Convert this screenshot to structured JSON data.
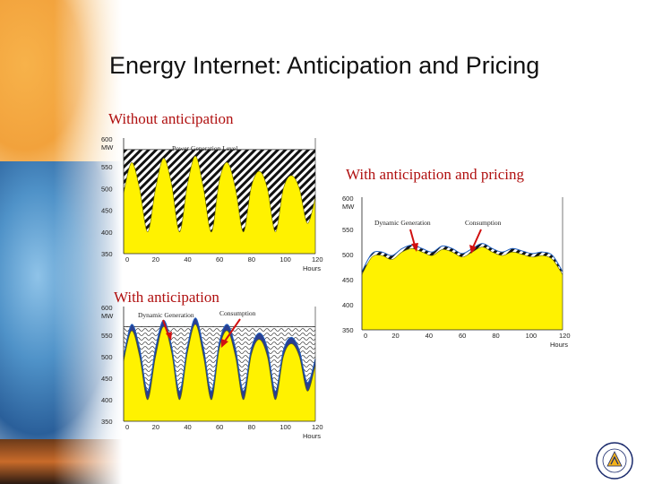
{
  "slide": {
    "title": "Energy Internet: Anticipation and Pricing"
  },
  "colors": {
    "accent_red": "#b01010",
    "fill_yellow": "#fff200",
    "line_blue": "#1f5fbf"
  },
  "chart_data": [
    {
      "type": "area",
      "title": "Without anticipation",
      "series_label": "Power Generation Level",
      "ylabel_unit": "MW",
      "xlabel_unit": "Hours",
      "ylim": [
        350,
        600
      ],
      "xlim": [
        0,
        120
      ],
      "y_ticks": [
        350,
        400,
        450,
        500,
        550,
        600
      ],
      "x_ticks": [
        0,
        20,
        40,
        60,
        80,
        100,
        120
      ],
      "generation_level": 590,
      "x": [
        0,
        5,
        10,
        15,
        20,
        25,
        30,
        35,
        40,
        45,
        50,
        55,
        60,
        65,
        70,
        75,
        80,
        85,
        90,
        95,
        100,
        105,
        110,
        115,
        120
      ],
      "consumption": [
        490,
        560,
        500,
        400,
        500,
        570,
        510,
        400,
        510,
        575,
        500,
        400,
        520,
        560,
        500,
        400,
        505,
        540,
        500,
        400,
        500,
        530,
        500,
        420,
        480
      ]
    },
    {
      "type": "area",
      "title": "With anticipation",
      "series": [
        {
          "name": "Dynamic Generation"
        },
        {
          "name": "Consumption"
        }
      ],
      "ylabel_unit": "MW",
      "xlabel_unit": "Hours",
      "ylim": [
        350,
        600
      ],
      "xlim": [
        0,
        120
      ],
      "y_ticks": [
        350,
        400,
        450,
        500,
        550,
        600
      ],
      "x_ticks": [
        0,
        20,
        40,
        60,
        80,
        100,
        120
      ],
      "generation_level": 570,
      "x": [
        0,
        5,
        10,
        15,
        20,
        25,
        30,
        35,
        40,
        45,
        50,
        55,
        60,
        65,
        70,
        75,
        80,
        85,
        90,
        95,
        100,
        105,
        110,
        115,
        120
      ],
      "consumption": [
        490,
        560,
        500,
        400,
        500,
        570,
        510,
        400,
        510,
        575,
        500,
        400,
        520,
        560,
        500,
        400,
        505,
        540,
        500,
        400,
        500,
        530,
        500,
        420,
        480
      ],
      "generation": [
        500,
        575,
        520,
        420,
        520,
        585,
        525,
        420,
        525,
        590,
        520,
        420,
        535,
        575,
        520,
        420,
        520,
        555,
        520,
        420,
        515,
        545,
        515,
        440,
        495
      ]
    },
    {
      "type": "area",
      "title": "With anticipation and pricing",
      "series": [
        {
          "name": "Dynamic Generation"
        },
        {
          "name": "Consumption"
        }
      ],
      "ylabel_unit": "MW",
      "xlabel_unit": "Hours",
      "ylim": [
        350,
        600
      ],
      "xlim": [
        0,
        120
      ],
      "y_ticks": [
        350,
        400,
        450,
        500,
        550,
        600
      ],
      "x_ticks": [
        0,
        20,
        40,
        60,
        80,
        100,
        120
      ],
      "x": [
        0,
        6,
        12,
        18,
        24,
        30,
        36,
        42,
        48,
        54,
        60,
        66,
        72,
        78,
        84,
        90,
        96,
        102,
        108,
        114,
        120
      ],
      "consumption": [
        460,
        495,
        498,
        490,
        505,
        512,
        505,
        498,
        510,
        505,
        495,
        505,
        515,
        505,
        498,
        505,
        500,
        495,
        498,
        490,
        460
      ],
      "generation": [
        466,
        502,
        505,
        498,
        512,
        519,
        512,
        505,
        517,
        512,
        502,
        512,
        522,
        512,
        505,
        512,
        507,
        502,
        505,
        498,
        466
      ]
    }
  ]
}
